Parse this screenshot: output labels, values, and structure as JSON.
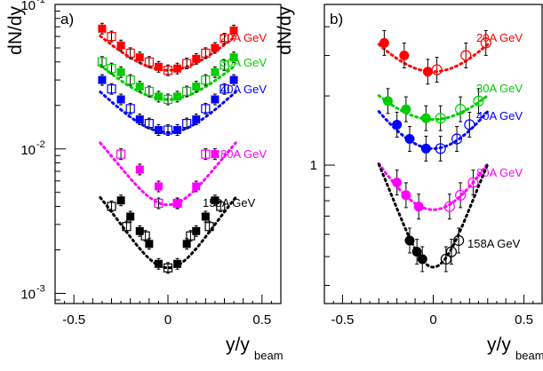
{
  "chart_data": [
    {
      "type": "scatter",
      "panel_label": "a)",
      "ylabel": "dN/dy",
      "xlabel_main": "y/y",
      "xlabel_sub": "beam",
      "xlim": [
        -0.6,
        0.6
      ],
      "ylim": [
        0.00085,
        0.1
      ],
      "yscale": "log",
      "xticks": [
        {
          "value": -0.5,
          "label": "-0.5"
        },
        {
          "value": 0,
          "label": "0"
        },
        {
          "value": 0.5,
          "label": "0.5"
        }
      ],
      "yticks": [
        {
          "value": 0.001,
          "label": "10",
          "exp": "-3"
        },
        {
          "value": 0.01,
          "label": "10",
          "exp": "-2"
        },
        {
          "value": 0.1,
          "label": "10",
          "exp": "-1"
        }
      ],
      "series": [
        {
          "name": "20A GeV",
          "color": "#ff0000",
          "filled": {
            "x": [
              -0.35,
              -0.25,
              -0.15,
              -0.05,
              0.05,
              0.15,
              0.25,
              0.35
            ],
            "y": [
              0.068,
              0.052,
              0.043,
              0.037,
              0.036,
              0.042,
              0.05,
              0.066
            ]
          },
          "open": {
            "x": [
              -0.3,
              -0.2,
              -0.1,
              0.0,
              0.1,
              0.2,
              0.3
            ],
            "y": [
              0.06,
              0.046,
              0.04,
              0.035,
              0.039,
              0.046,
              0.058
            ]
          },
          "fit": {
            "a": 0.035,
            "b": 5.6
          }
        },
        {
          "name": "30A GeV",
          "color": "#00cc00",
          "filled": {
            "x": [
              -0.25,
              -0.15,
              -0.05,
              0.05,
              0.15,
              0.25,
              0.35
            ],
            "y": [
              0.034,
              0.027,
              0.023,
              0.023,
              0.027,
              0.034,
              0.043
            ]
          },
          "open": {
            "x": [
              -0.35,
              -0.3,
              -0.2,
              -0.1,
              0.0,
              0.1,
              0.2,
              0.3
            ],
            "y": [
              0.04,
              0.036,
              0.03,
              0.025,
              0.022,
              0.025,
              0.03,
              0.038
            ]
          },
          "fit": {
            "a": 0.022,
            "b": 5.6
          }
        },
        {
          "name": "40A GeV",
          "color": "#0000ff",
          "filled": {
            "x": [
              -0.35,
              -0.25,
              -0.15,
              -0.05,
              0.05,
              0.15,
              0.25,
              0.35
            ],
            "y": [
              0.03,
              0.022,
              0.016,
              0.0135,
              0.0135,
              0.016,
              0.022,
              0.03
            ]
          },
          "open": {
            "x": [
              -0.3,
              -0.2,
              -0.1,
              0.0,
              0.1,
              0.2,
              0.3
            ],
            "y": [
              0.026,
              0.019,
              0.015,
              0.0135,
              0.015,
              0.019,
              0.026
            ]
          },
          "fit": {
            "a": 0.013,
            "b": 7.0
          }
        },
        {
          "name": "80A GeV",
          "color": "#ff00ff",
          "filled": {
            "x": [
              -0.15,
              -0.05,
              0.05,
              0.15,
              0.25
            ],
            "y": [
              0.0072,
              0.0055,
              0.0042,
              0.0055,
              0.0092
            ]
          },
          "open": {
            "x": [
              -0.25,
              -0.05,
              0.05,
              0.2
            ],
            "y": [
              0.0092,
              0.0042,
              0.0042,
              0.0092
            ]
          },
          "fit": {
            "a": 0.0041,
            "b": 13.0
          }
        },
        {
          "name": "158A GeV",
          "color": "#000000",
          "filled": {
            "x": [
              -0.25,
              -0.2,
              -0.15,
              -0.1,
              -0.05,
              0.05,
              0.1,
              0.15,
              0.2,
              0.25
            ],
            "y": [
              0.0044,
              0.0034,
              0.0027,
              0.0022,
              0.0016,
              0.0016,
              0.0022,
              0.0027,
              0.0034,
              0.0044
            ]
          },
          "open": {
            "x": [
              -0.3,
              -0.22,
              -0.12,
              0.0,
              0.12,
              0.22,
              0.28
            ],
            "y": [
              0.004,
              0.0029,
              0.0025,
              0.0015,
              0.0025,
              0.0029,
              0.004
            ]
          },
          "fit": {
            "a": 0.0015,
            "b": 16.0
          }
        }
      ],
      "labels": [
        "20A GeV",
        "30A GeV",
        "40A GeV",
        "80A GeV",
        "158A GeV"
      ]
    },
    {
      "type": "scatter",
      "panel_label": "b)",
      "ylabel": "dN/dy",
      "xlabel_main": "y/y",
      "xlabel_sub": "beam",
      "xlim": [
        -0.6,
        0.6
      ],
      "ylim": [
        0.25,
        5.0
      ],
      "yscale": "log",
      "xticks": [
        {
          "value": -0.5,
          "label": "-0.5"
        },
        {
          "value": 0,
          "label": "0"
        },
        {
          "value": 0.5,
          "label": "0.5"
        }
      ],
      "yticks": [
        {
          "value": 1,
          "label": "1"
        }
      ],
      "series": [
        {
          "name": "20A GeV",
          "color": "#ff0000",
          "filled": {
            "x": [
              -0.27,
              -0.16,
              -0.03
            ],
            "y": [
              3.4,
              3.0,
              2.55
            ]
          },
          "open": {
            "x": [
              0.02,
              0.18,
              0.29
            ],
            "y": [
              2.6,
              3.0,
              3.4
            ]
          },
          "fit": {
            "a": 2.55,
            "b": 3.5
          }
        },
        {
          "name": "30A GeV",
          "color": "#00cc00",
          "filled": {
            "x": [
              -0.25,
              -0.15,
              -0.04
            ],
            "y": [
              1.9,
              1.75,
              1.6
            ]
          },
          "open": {
            "x": [
              0.04,
              0.15,
              0.25
            ],
            "y": [
              1.6,
              1.75,
              1.9
            ]
          },
          "fit": {
            "a": 1.58,
            "b": 3.0
          }
        },
        {
          "name": "40A GeV",
          "color": "#0000ff",
          "filled": {
            "x": [
              -0.2,
              -0.13,
              -0.04
            ],
            "y": [
              1.5,
              1.3,
              1.18
            ]
          },
          "open": {
            "x": [
              0.04,
              0.13,
              0.2
            ],
            "y": [
              1.18,
              1.3,
              1.5
            ]
          },
          "fit": {
            "a": 1.18,
            "b": 5.0
          }
        },
        {
          "name": "80A GeV",
          "color": "#ff00ff",
          "filled": {
            "x": [
              -0.2,
              -0.15,
              -0.08
            ],
            "y": [
              0.84,
              0.74,
              0.66
            ]
          },
          "open": {
            "x": [
              0.09,
              0.15,
              0.22
            ],
            "y": [
              0.66,
              0.74,
              0.84
            ]
          },
          "fit": {
            "a": 0.64,
            "b": 6.5
          }
        },
        {
          "name": "158A GeV",
          "color": "#000000",
          "filled": {
            "x": [
              -0.13,
              -0.09,
              -0.06
            ],
            "y": [
              0.47,
              0.42,
              0.39
            ]
          },
          "open": {
            "x": [
              0.07,
              0.1,
              0.14
            ],
            "y": [
              0.39,
              0.42,
              0.47
            ]
          },
          "fit": {
            "a": 0.36,
            "b": 20.0
          }
        }
      ],
      "labels": [
        "20A GeV",
        "30A GeV",
        "40A GeV",
        "80A GeV",
        "158A GeV"
      ]
    }
  ]
}
